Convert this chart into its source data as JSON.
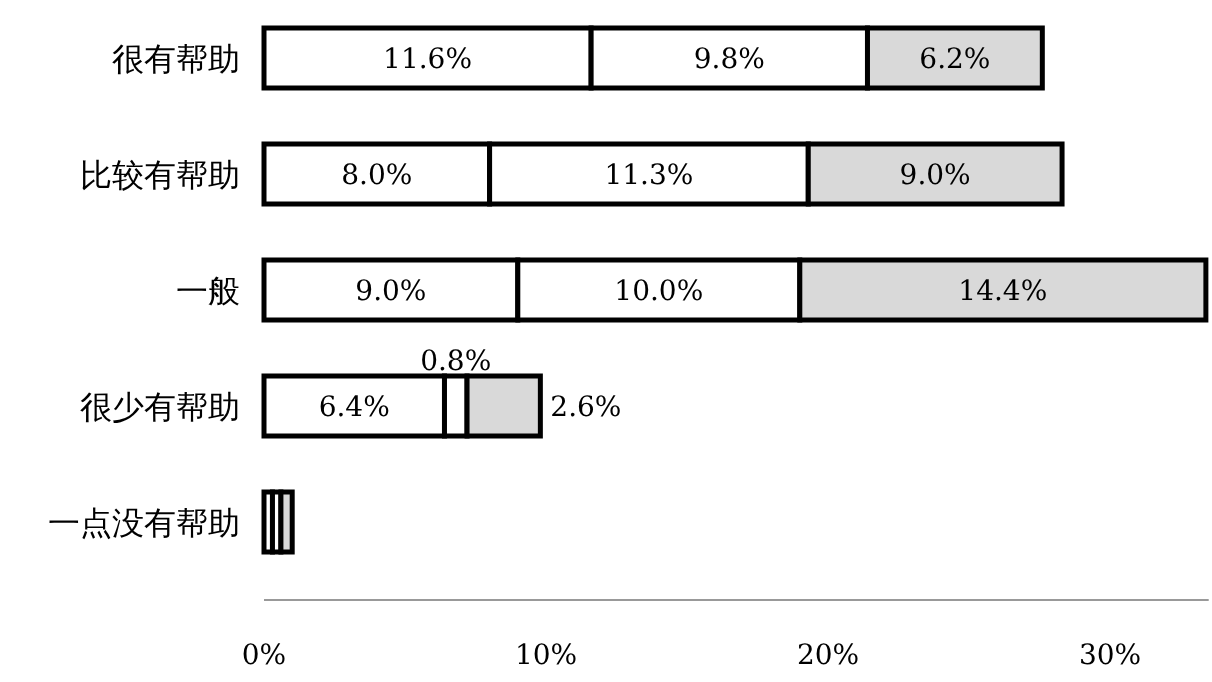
{
  "chart_data": {
    "type": "bar",
    "orientation": "horizontal",
    "stacked": true,
    "categories": [
      "很有帮助",
      "比较有帮助",
      "一般",
      "很少有帮助",
      "一点没有帮助"
    ],
    "series": [
      {
        "color": "#ffffff",
        "values": [
          11.6,
          8.0,
          9.0,
          6.4,
          0.3
        ],
        "value_labels": [
          "11.6%",
          "8.0%",
          "9.0%",
          "6.4%",
          null
        ]
      },
      {
        "color": "#ffffff",
        "values": [
          9.8,
          11.3,
          10.0,
          0.8,
          0.3
        ],
        "value_labels": [
          "9.8%",
          "11.3%",
          "10.0%",
          "0.8%",
          null
        ]
      },
      {
        "color": "#d9d9d9",
        "values": [
          6.2,
          9.0,
          14.4,
          2.6,
          0.4
        ],
        "value_labels": [
          "6.2%",
          "9.0%",
          "14.4%",
          "2.6%",
          null
        ]
      }
    ],
    "xlim": [
      0,
      33.5
    ],
    "xticks": [
      {
        "value": 0,
        "label": "0%"
      },
      {
        "value": 10,
        "label": "10%"
      },
      {
        "value": 20,
        "label": "20%"
      },
      {
        "value": 30,
        "label": "30%"
      }
    ],
    "grid": false
  }
}
